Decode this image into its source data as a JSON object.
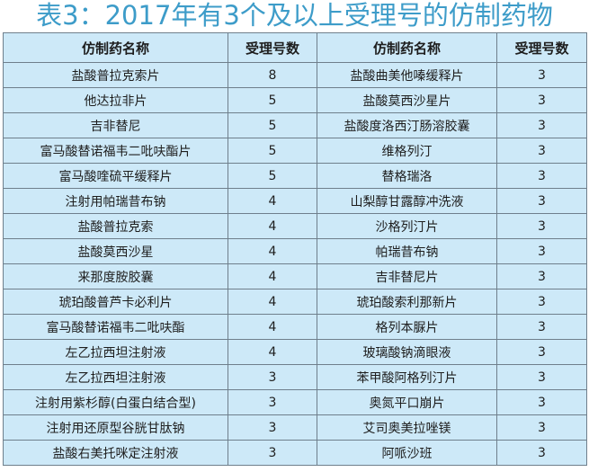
{
  "title": "表3：2017年有3个及以上受理号的仿制药物",
  "headers": [
    "仿制药名称",
    "受理号数",
    "仿制药名称",
    "受理号数"
  ],
  "rows": [
    [
      "盐酸普拉克索片",
      "8",
      "盐酸曲美他嗪缓释片",
      "3"
    ],
    [
      "他达拉非片",
      "5",
      "盐酸莫西沙星片",
      "3"
    ],
    [
      "吉非替尼",
      "5",
      "盐酸度洛西汀肠溶胶囊",
      "3"
    ],
    [
      "富马酸替诺福韦二吡呋酯片",
      "5",
      "维格列汀",
      "3"
    ],
    [
      "富马酸喹硫平缓释片",
      "5",
      "替格瑞洛",
      "3"
    ],
    [
      "注射用帕瑞昔布钠",
      "4",
      "山梨醇甘露醇冲洗液",
      "3"
    ],
    [
      "盐酸普拉克索",
      "4",
      "沙格列汀片",
      "3"
    ],
    [
      "盐酸莫西沙星",
      "4",
      "帕瑞昔布钠",
      "3"
    ],
    [
      "来那度胺胶囊",
      "4",
      "吉非替尼片",
      "3"
    ],
    [
      "琥珀酸普芦卡必利片",
      "4",
      "琥珀酸索利那新片",
      "3"
    ],
    [
      "富马酸替诺福韦二吡呋酯",
      "4",
      "格列本脲片",
      "3"
    ],
    [
      "左乙拉西坦注射液",
      "4",
      "玻璃酸钠滴眼液",
      "3"
    ],
    [
      "左乙拉西坦注射液",
      "3",
      "苯甲酸阿格列汀片",
      "3"
    ],
    [
      "注射用紫杉醇(白蛋白结合型)",
      "3",
      "奥氮平口崩片",
      "3"
    ],
    [
      "注射用还原型谷胱甘肽钠",
      "3",
      "艾司奥美拉唑镁",
      "3"
    ],
    [
      "盐酸右美托咪定注射液",
      "3",
      "阿哌沙班",
      "3"
    ]
  ]
}
